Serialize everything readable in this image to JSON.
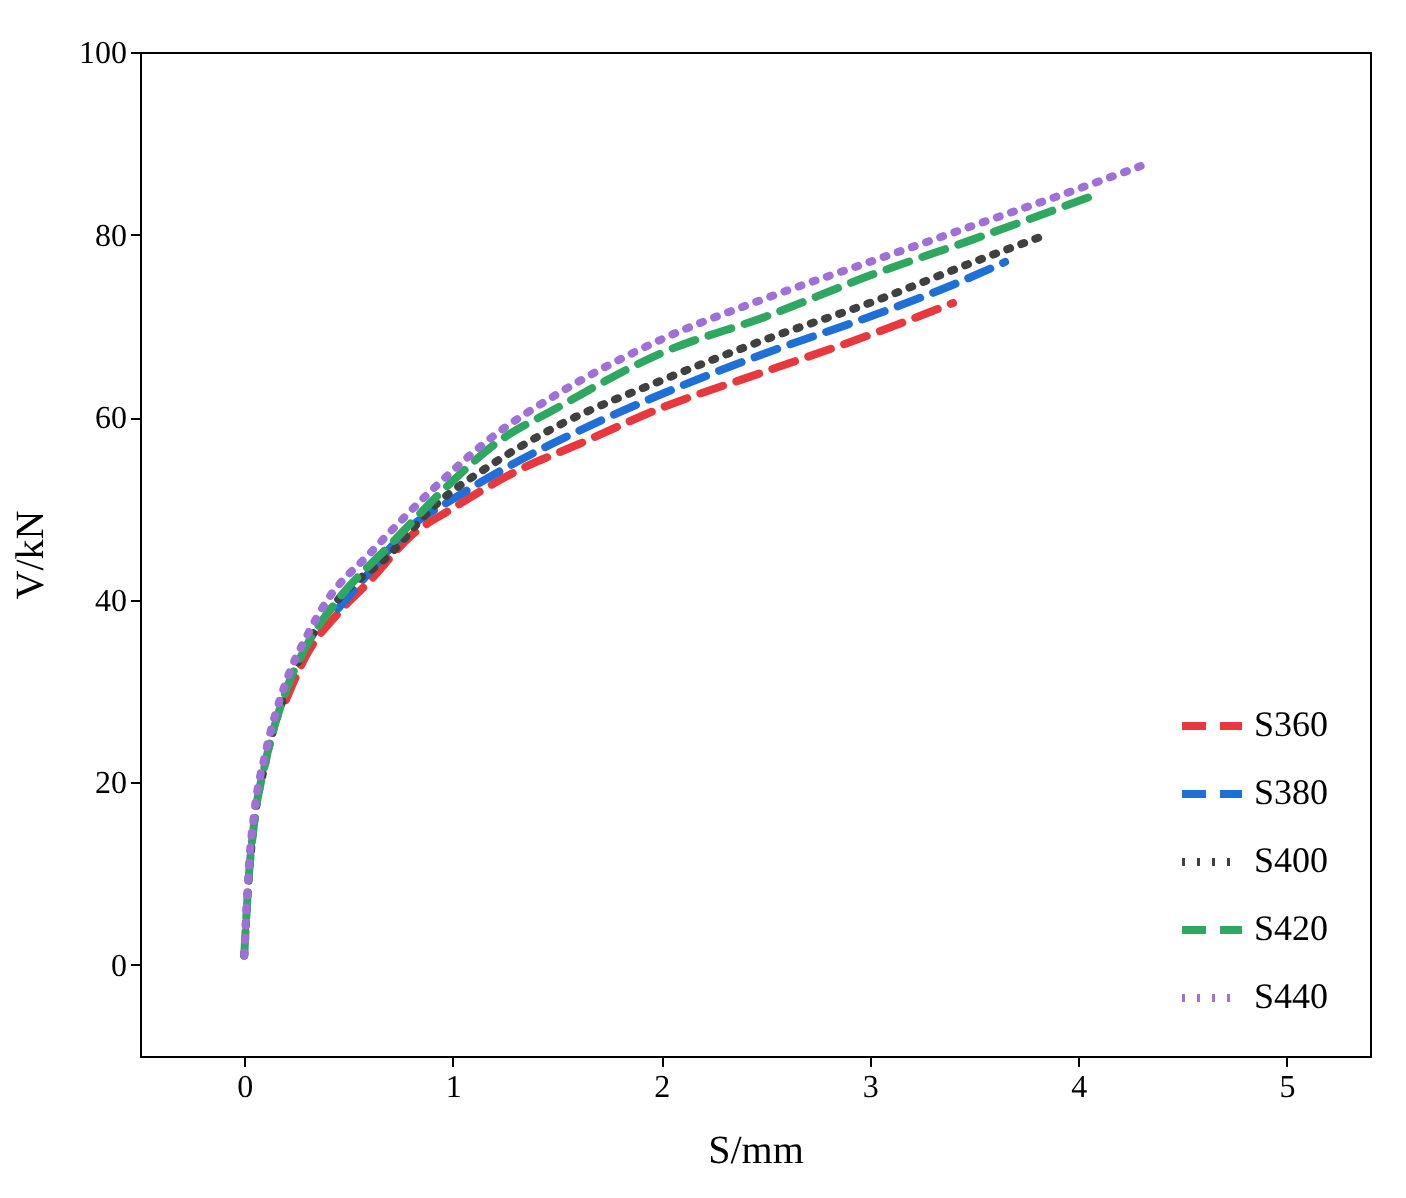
{
  "chart_data": {
    "type": "line",
    "xlabel": "S/mm",
    "ylabel": "V/kN",
    "xlim": [
      -0.5,
      5.4
    ],
    "ylim": [
      -10,
      100
    ],
    "xticks": [
      0,
      1,
      2,
      3,
      4,
      5
    ],
    "yticks": [
      0,
      20,
      40,
      60,
      80,
      100
    ],
    "grid": false,
    "legend": "bottom right",
    "marker": "none",
    "series": [
      {
        "name": "S360",
        "color": "#e8383d",
        "line_style": "dashed",
        "x": [
          0.2,
          0.3,
          0.45,
          0.6,
          0.8,
          1.0,
          1.3,
          1.6,
          2.0,
          2.5,
          3.0,
          3.4
        ],
        "values": [
          29,
          34,
          38.5,
          42,
          47,
          50,
          54,
          57,
          61,
          65,
          69,
          72.5
        ]
      },
      {
        "name": "S380",
        "color": "#1f6fd8",
        "line_style": "dashed",
        "x": [
          0.45,
          0.6,
          0.8,
          1.0,
          1.3,
          1.7,
          2.0,
          2.5,
          3.0,
          3.4,
          3.65
        ],
        "values": [
          39,
          43,
          48,
          51,
          55,
          59.5,
          62.5,
          67,
          71,
          74.5,
          77
        ]
      },
      {
        "name": "S400",
        "color": "#404040",
        "line_style": "dotted",
        "x": [
          0,
          0.02,
          0.05,
          0.1,
          0.2,
          0.3,
          0.45,
          0.7,
          0.9,
          1.2,
          1.5,
          2.0,
          2.5,
          3.0,
          3.5,
          3.85
        ],
        "values": [
          1,
          9,
          16,
          22,
          30,
          35,
          40,
          45,
          50,
          55,
          59,
          64,
          68.5,
          72.5,
          77,
          80
        ]
      },
      {
        "name": "S420",
        "color": "#2ea860",
        "line_style": "dashed",
        "x": [
          0,
          0.02,
          0.05,
          0.1,
          0.2,
          0.3,
          0.45,
          0.7,
          1.0,
          1.2,
          1.5,
          2.0,
          2.5,
          3.0,
          3.5,
          4.1
        ],
        "values": [
          1,
          9,
          16,
          22,
          30,
          35,
          40,
          46,
          53,
          57,
          61,
          67,
          71,
          75.5,
          79.5,
          84.5
        ]
      },
      {
        "name": "S440",
        "color": "#a070d8",
        "line_style": "dotted",
        "x": [
          0,
          0.02,
          0.05,
          0.1,
          0.2,
          0.3,
          0.4,
          0.6,
          0.9,
          1.2,
          1.5,
          2.0,
          2.5,
          3.0,
          3.5,
          4.0,
          4.3
        ],
        "values": [
          1,
          10,
          17,
          23,
          31,
          36,
          40,
          45,
          52,
          58,
          62.5,
          68.5,
          73,
          77,
          81,
          85,
          87.5
        ]
      }
    ]
  }
}
